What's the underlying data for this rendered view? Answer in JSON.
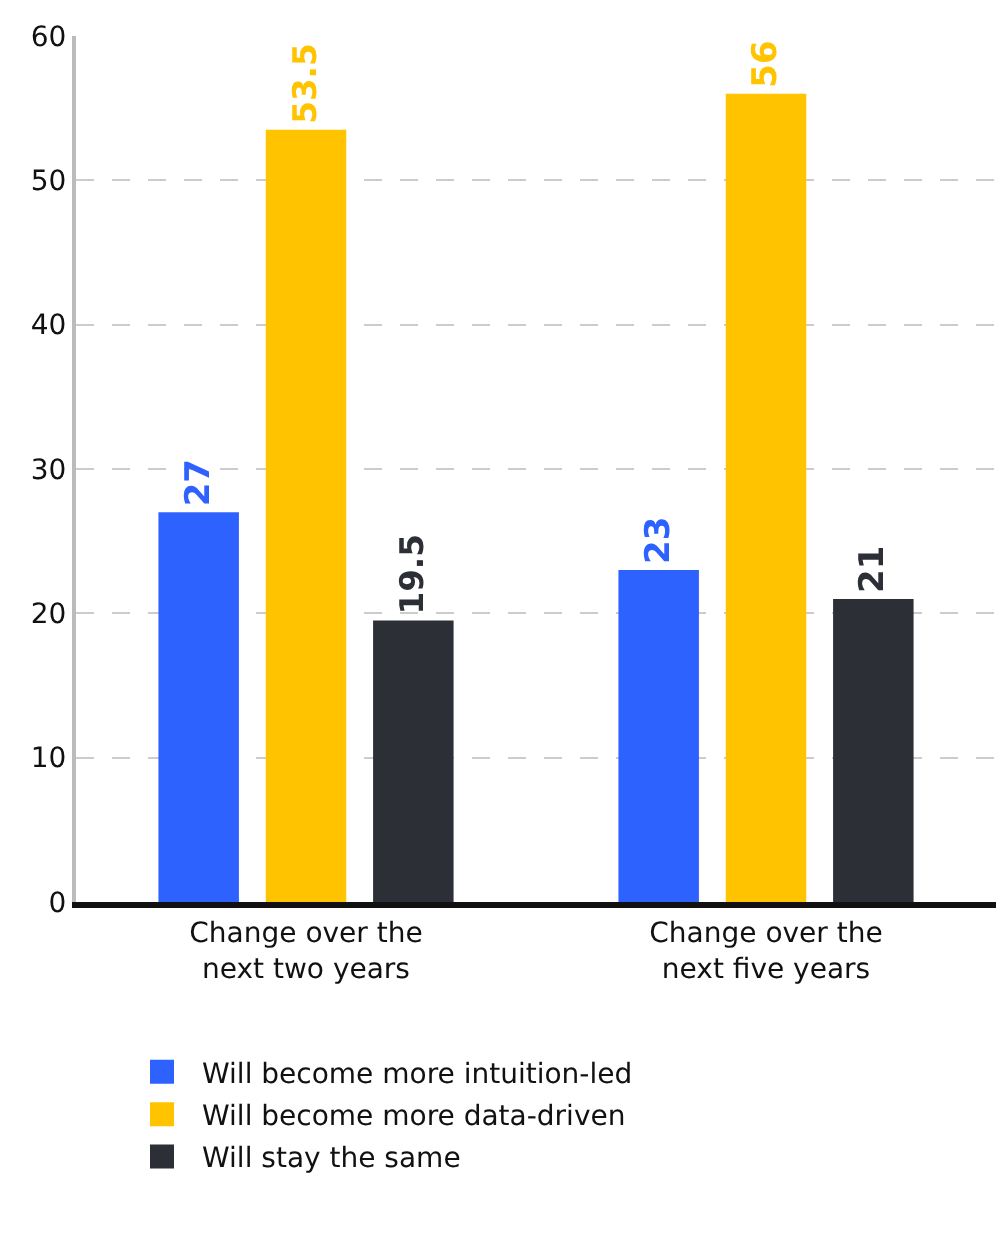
{
  "chart_data": {
    "type": "bar",
    "categories": [
      "Change over the next two years",
      "Change over the next five years"
    ],
    "series": [
      {
        "name": "Will become more intuition-led",
        "color": "#2e62ff",
        "values": [
          27,
          23
        ]
      },
      {
        "name": "Will become more data-driven",
        "color": "#ffc300",
        "values": [
          53.5,
          56
        ]
      },
      {
        "name": "Will stay the same",
        "color": "#2c2f36",
        "values": [
          19.5,
          21
        ]
      }
    ],
    "ylim": [
      0,
      60
    ],
    "yticks": [
      0,
      10,
      20,
      30,
      40,
      50,
      60
    ],
    "grid": "y",
    "line_style": "dashed",
    "data_labels": true,
    "legend": "bottom"
  }
}
